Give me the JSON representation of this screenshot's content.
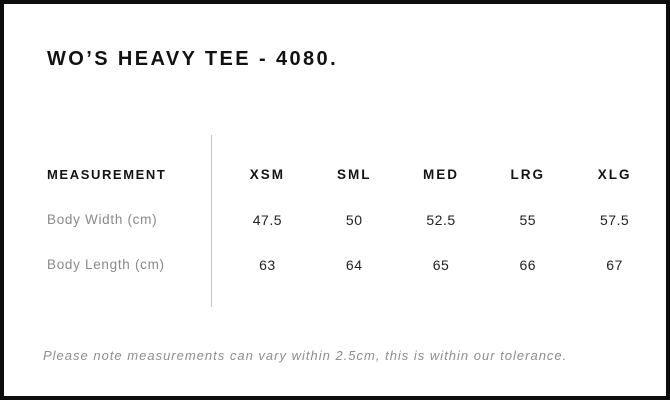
{
  "page": {
    "title": "WO’S HEAVY TEE - 4080.",
    "note": "Please note measurements can vary within 2.5cm, this is within our tolerance."
  },
  "size_chart": {
    "measurement_header": "MEASUREMENT",
    "size_headers": [
      "XSM",
      "SML",
      "MED",
      "LRG",
      "XLG"
    ],
    "rows": [
      {
        "label": "Body Width (cm)",
        "values": [
          "47.5",
          "50",
          "52.5",
          "55",
          "57.5"
        ]
      },
      {
        "label": "Body Length (cm)",
        "values": [
          "63",
          "64",
          "65",
          "66",
          "67"
        ]
      }
    ]
  },
  "colors": {
    "border_black": "#0d0d0d",
    "heading_text": "#121212",
    "value_text": "#222222",
    "muted_gray": "#8a8a8a",
    "divider_gray": "#c5c5c5"
  }
}
